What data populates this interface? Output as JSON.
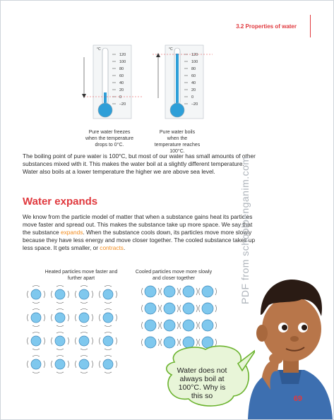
{
  "header": {
    "section": "3.2  Properties of water"
  },
  "thermometers": [
    {
      "unit": "°C",
      "ticks": [
        "120",
        "100",
        "80",
        "60",
        "40",
        "20",
        "0",
        "–20"
      ],
      "level": 0,
      "caption": "Pure water freezes when the temperature drops to 0°C."
    },
    {
      "unit": "°C",
      "ticks": [
        "120",
        "100",
        "80",
        "60",
        "40",
        "20",
        "0",
        "–20"
      ],
      "level": 100,
      "caption": "Pure water boils when the temperature reaches 100°C."
    }
  ],
  "paragraph1": "The boiling point of pure water is 100°C, but most of our water has small amounts of other substances mixed with it. This makes the water boil at a slightly different temperature. Water also boils at a lower temperature the higher we are above sea level.",
  "heading": "Water expands",
  "paragraph2": {
    "part1": "We know from the particle model of matter that when a substance gains heat its particles move faster and spread out. This makes the substance take up more space. We say that the substance ",
    "expands": "expands",
    "part2": ". When the substance cools down, its particles move more slowly because they have less energy and move closer together. The cooled substance takes up less space. It gets smaller, or ",
    "contracts": "contracts",
    "part3": "."
  },
  "heated_caption": "Heated particles move faster and further apart",
  "cooled_caption": "Cooled particles move more slowly and closer together",
  "speech_bubble": "Water does not always boil at 100°C. Why is this so",
  "watermark": "PDF from schoolbenganim.com",
  "page_number": "69",
  "colors": {
    "accent": "#e0393e",
    "highlight": "#f08a1c",
    "thermo_fill": "#2e9fd8",
    "particle": "#7fc8ee"
  }
}
